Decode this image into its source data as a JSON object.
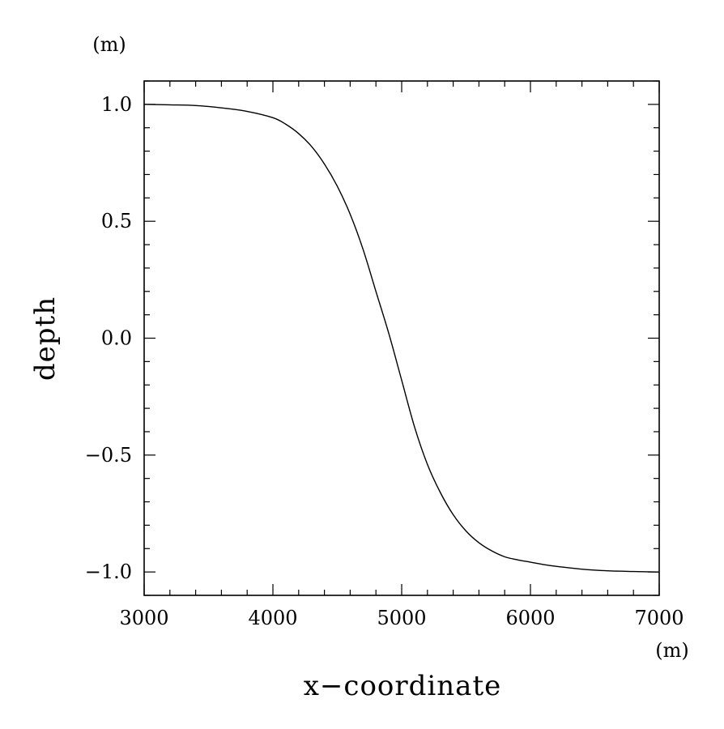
{
  "chart_data": {
    "type": "line",
    "title": "",
    "xlabel": "x−coordinate",
    "ylabel": "depth",
    "x_unit": "(m)",
    "y_unit": "(m)",
    "xlim": [
      3000,
      7000
    ],
    "ylim": [
      -1.1,
      1.1
    ],
    "x_ticks": [
      3000,
      4000,
      5000,
      6000,
      7000
    ],
    "x_tick_labels": [
      "3000",
      "4000",
      "5000",
      "6000",
      "7000"
    ],
    "y_ticks": [
      1.0,
      0.5,
      0.0,
      -0.5,
      -1.0
    ],
    "y_tick_labels": [
      "1.0",
      "0.5",
      "0.0",
      "−0.5",
      "−1.0"
    ],
    "grid": false,
    "series": [
      {
        "x": [
          3000,
          3200,
          3400,
          3600,
          3800,
          4000,
          4100,
          4200,
          4300,
          4400,
          4500,
          4600,
          4700,
          4800,
          4900,
          5000,
          5100,
          5200,
          5300,
          5400,
          5500,
          5600,
          5700,
          5800,
          5900,
          6000,
          6100,
          6200,
          6400,
          6600,
          6800,
          7000
        ],
        "y": [
          1.0,
          0.998,
          0.995,
          0.985,
          0.97,
          0.943,
          0.915,
          0.875,
          0.82,
          0.745,
          0.65,
          0.53,
          0.38,
          0.2,
          0.02,
          -0.18,
          -0.38,
          -0.54,
          -0.66,
          -0.755,
          -0.825,
          -0.875,
          -0.91,
          -0.935,
          -0.948,
          -0.958,
          -0.968,
          -0.976,
          -0.988,
          -0.995,
          -0.998,
          -1.0
        ],
        "color": "#000000"
      }
    ]
  }
}
